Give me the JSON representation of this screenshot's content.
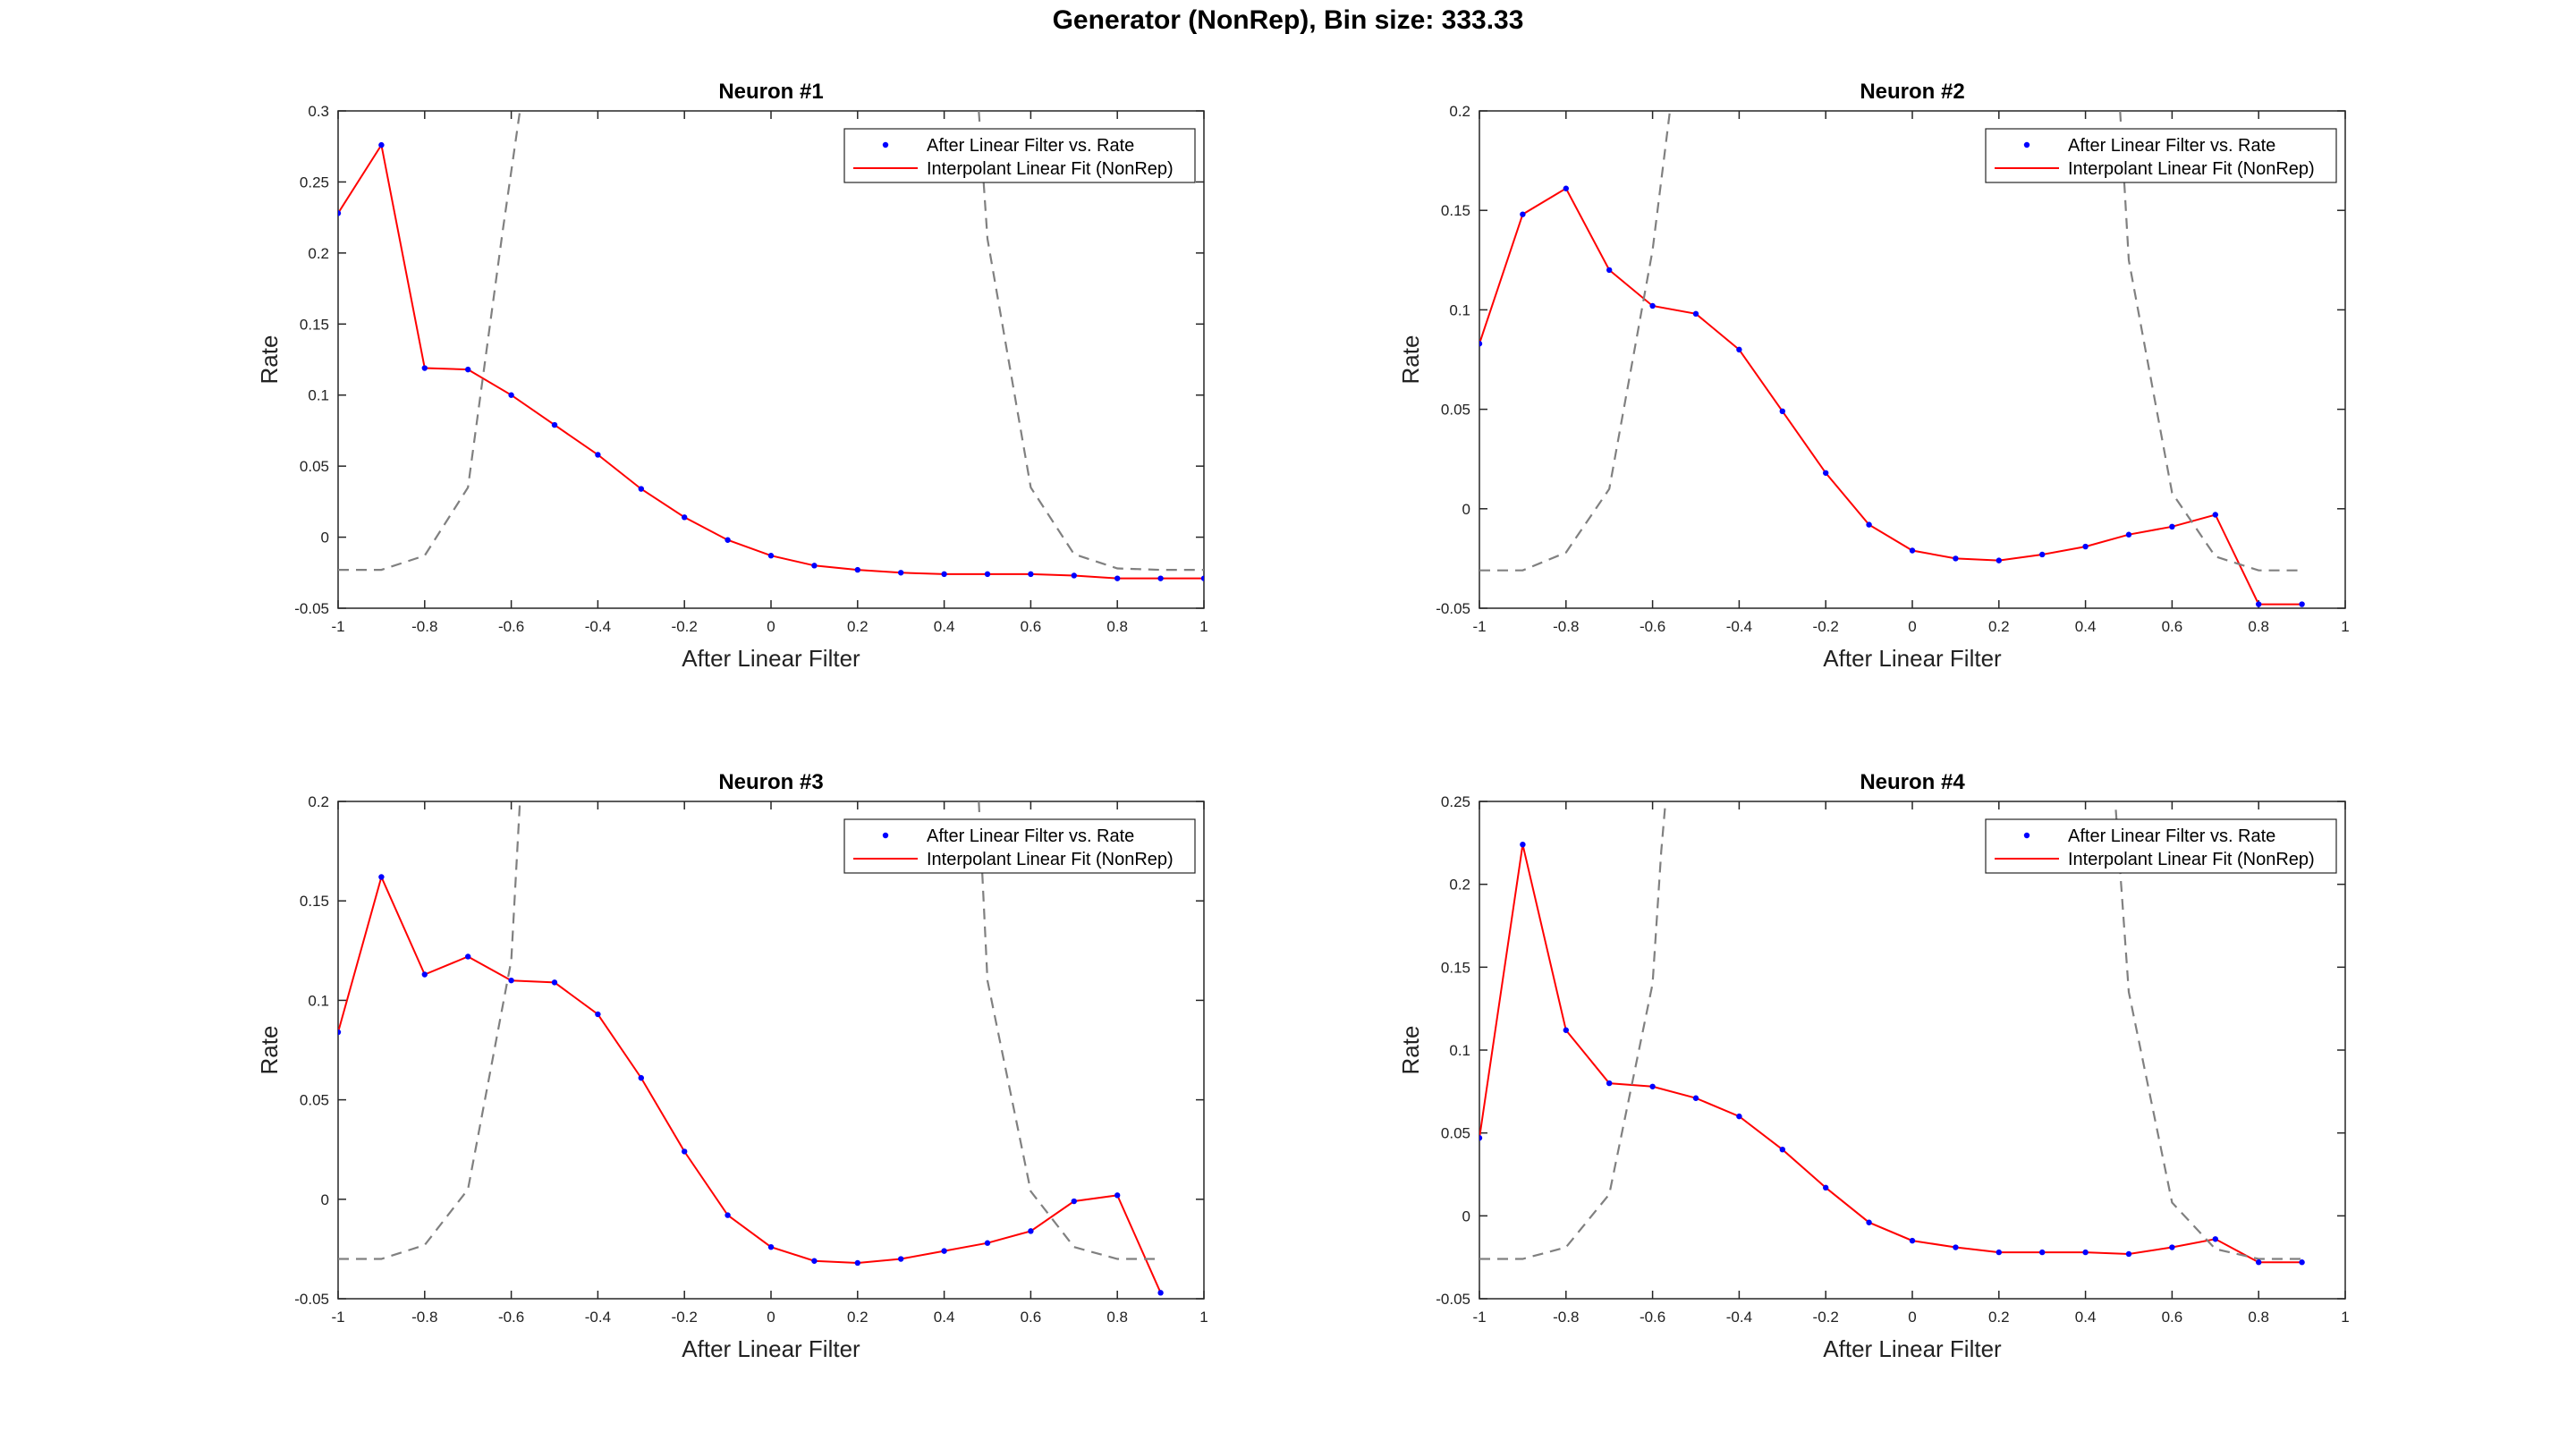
{
  "figure": {
    "title": "Generator (NonRep), Bin size: 333.33"
  },
  "chart_data": [
    {
      "type": "line",
      "title": "Neuron #1",
      "xlabel": "After Linear Filter",
      "ylabel": "Rate",
      "xlim": [
        -1,
        1
      ],
      "ylim": [
        -0.05,
        0.3
      ],
      "xticks": [
        "-1",
        "-0.8",
        "-0.6",
        "-0.4",
        "-0.2",
        "0",
        "0.2",
        "0.4",
        "0.6",
        "0.8",
        "1"
      ],
      "yticks": [
        "-0.05",
        "0",
        "0.05",
        "0.1",
        "0.15",
        "0.2",
        "0.25",
        "0.3"
      ],
      "legend": [
        "After Linear Filter vs. Rate",
        "Interpolant Linear Fit (NonRep)"
      ],
      "legend_position": "top-right",
      "series": [
        {
          "name": "After Linear Filter vs. Rate",
          "style": "points",
          "color": "#0000ff",
          "x": [
            -1,
            -0.9,
            -0.8,
            -0.7,
            -0.6,
            -0.5,
            -0.4,
            -0.3,
            -0.2,
            -0.1,
            0,
            0.1,
            0.2,
            0.3,
            0.4,
            0.5,
            0.6,
            0.7,
            0.8,
            0.9,
            1
          ],
          "y": [
            0.228,
            0.276,
            0.119,
            0.118,
            0.1,
            0.079,
            0.058,
            0.034,
            0.014,
            -0.002,
            -0.013,
            -0.02,
            -0.023,
            -0.025,
            -0.026,
            -0.026,
            -0.026,
            -0.027,
            -0.029,
            -0.029,
            -0.029
          ]
        },
        {
          "name": "Interpolant Linear Fit (NonRep)",
          "style": "line",
          "color": "#ff0000",
          "x": [
            -1,
            -0.9,
            -0.8,
            -0.7,
            -0.6,
            -0.5,
            -0.4,
            -0.3,
            -0.2,
            -0.1,
            0,
            0.1,
            0.2,
            0.3,
            0.4,
            0.5,
            0.6,
            0.7,
            0.8,
            0.9,
            1
          ],
          "y": [
            0.228,
            0.276,
            0.119,
            0.118,
            0.1,
            0.079,
            0.058,
            0.034,
            0.014,
            -0.002,
            -0.013,
            -0.02,
            -0.023,
            -0.025,
            -0.026,
            -0.026,
            -0.026,
            -0.027,
            -0.029,
            -0.029,
            -0.029
          ]
        },
        {
          "style": "dashed",
          "color": "#808080",
          "x": [
            -1,
            -0.9,
            -0.8,
            -0.7,
            -0.62,
            -0.58,
            -0.57
          ],
          "y": [
            -0.023,
            -0.023,
            -0.013,
            0.035,
            0.215,
            0.3,
            0.32
          ]
        },
        {
          "style": "dashed",
          "color": "#808080",
          "x": [
            0.48,
            0.5,
            0.6,
            0.7,
            0.8,
            0.9,
            1
          ],
          "y": [
            0.3,
            0.21,
            0.035,
            -0.012,
            -0.022,
            -0.023,
            -0.023
          ]
        }
      ]
    },
    {
      "type": "line",
      "title": "Neuron #2",
      "xlabel": "After Linear Filter",
      "ylabel": "Rate",
      "xlim": [
        -1,
        1
      ],
      "ylim": [
        -0.05,
        0.2
      ],
      "xticks": [
        "-1",
        "-0.8",
        "-0.6",
        "-0.4",
        "-0.2",
        "0",
        "0.2",
        "0.4",
        "0.6",
        "0.8",
        "1"
      ],
      "yticks": [
        "-0.05",
        "0",
        "0.05",
        "0.1",
        "0.15",
        "0.2"
      ],
      "legend": [
        "After Linear Filter vs. Rate",
        "Interpolant Linear Fit (NonRep)"
      ],
      "legend_position": "top-right",
      "series": [
        {
          "name": "After Linear Filter vs. Rate",
          "style": "points",
          "color": "#0000ff",
          "x": [
            -1,
            -0.9,
            -0.8,
            -0.7,
            -0.6,
            -0.5,
            -0.4,
            -0.3,
            -0.2,
            -0.1,
            0,
            0.1,
            0.2,
            0.3,
            0.4,
            0.5,
            0.6,
            0.7,
            0.8,
            0.9
          ],
          "y": [
            0.083,
            0.148,
            0.161,
            0.12,
            0.102,
            0.098,
            0.08,
            0.049,
            0.018,
            -0.008,
            -0.021,
            -0.025,
            -0.026,
            -0.023,
            -0.019,
            -0.013,
            -0.009,
            -0.003,
            -0.048,
            -0.048
          ]
        },
        {
          "name": "Interpolant Linear Fit (NonRep)",
          "style": "line",
          "color": "#ff0000",
          "x": [
            -1,
            -0.9,
            -0.8,
            -0.7,
            -0.6,
            -0.5,
            -0.4,
            -0.3,
            -0.2,
            -0.1,
            0,
            0.1,
            0.2,
            0.3,
            0.4,
            0.5,
            0.6,
            0.7,
            0.8,
            0.9
          ],
          "y": [
            0.083,
            0.148,
            0.161,
            0.12,
            0.102,
            0.098,
            0.08,
            0.049,
            0.018,
            -0.008,
            -0.021,
            -0.025,
            -0.026,
            -0.023,
            -0.019,
            -0.013,
            -0.009,
            -0.003,
            -0.048,
            -0.048
          ]
        },
        {
          "style": "dashed",
          "color": "#808080",
          "x": [
            -1,
            -0.9,
            -0.8,
            -0.7,
            -0.6,
            -0.56,
            -0.55
          ],
          "y": [
            -0.031,
            -0.031,
            -0.022,
            0.01,
            0.13,
            0.2,
            0.22
          ]
        },
        {
          "style": "dashed",
          "color": "#808080",
          "x": [
            0.48,
            0.5,
            0.6,
            0.7,
            0.8,
            0.9
          ],
          "y": [
            0.2,
            0.125,
            0.008,
            -0.024,
            -0.031,
            -0.031
          ]
        }
      ]
    },
    {
      "type": "line",
      "title": "Neuron #3",
      "xlabel": "After Linear Filter",
      "ylabel": "Rate",
      "xlim": [
        -1,
        1
      ],
      "ylim": [
        -0.05,
        0.2
      ],
      "xticks": [
        "-1",
        "-0.8",
        "-0.6",
        "-0.4",
        "-0.2",
        "0",
        "0.2",
        "0.4",
        "0.6",
        "0.8",
        "1"
      ],
      "yticks": [
        "-0.05",
        "0",
        "0.05",
        "0.1",
        "0.15",
        "0.2"
      ],
      "legend": [
        "After Linear Filter vs. Rate",
        "Interpolant Linear Fit (NonRep)"
      ],
      "legend_position": "top-right",
      "series": [
        {
          "name": "After Linear Filter vs. Rate",
          "style": "points",
          "color": "#0000ff",
          "x": [
            -1,
            -0.9,
            -0.8,
            -0.7,
            -0.6,
            -0.5,
            -0.4,
            -0.3,
            -0.2,
            -0.1,
            0,
            0.1,
            0.2,
            0.3,
            0.4,
            0.5,
            0.6,
            0.7,
            0.8,
            0.9
          ],
          "y": [
            0.084,
            0.162,
            0.113,
            0.122,
            0.11,
            0.109,
            0.093,
            0.061,
            0.024,
            -0.008,
            -0.024,
            -0.031,
            -0.032,
            -0.03,
            -0.026,
            -0.022,
            -0.016,
            -0.001,
            0.002,
            -0.047
          ]
        },
        {
          "name": "Interpolant Linear Fit (NonRep)",
          "style": "line",
          "color": "#ff0000",
          "x": [
            -1,
            -0.9,
            -0.8,
            -0.7,
            -0.6,
            -0.5,
            -0.4,
            -0.3,
            -0.2,
            -0.1,
            0,
            0.1,
            0.2,
            0.3,
            0.4,
            0.5,
            0.6,
            0.7,
            0.8,
            0.9
          ],
          "y": [
            0.084,
            0.162,
            0.113,
            0.122,
            0.11,
            0.109,
            0.093,
            0.061,
            0.024,
            -0.008,
            -0.024,
            -0.031,
            -0.032,
            -0.03,
            -0.026,
            -0.022,
            -0.016,
            -0.001,
            0.002,
            -0.047
          ]
        },
        {
          "style": "dashed",
          "color": "#808080",
          "x": [
            -1,
            -0.9,
            -0.8,
            -0.7,
            -0.6,
            -0.58,
            -0.57
          ],
          "y": [
            -0.03,
            -0.03,
            -0.023,
            0.005,
            0.12,
            0.2,
            0.22
          ]
        },
        {
          "style": "dashed",
          "color": "#808080",
          "x": [
            0.48,
            0.5,
            0.6,
            0.7,
            0.8,
            0.9
          ],
          "y": [
            0.2,
            0.11,
            0.004,
            -0.024,
            -0.03,
            -0.03
          ]
        }
      ]
    },
    {
      "type": "line",
      "title": "Neuron #4",
      "xlabel": "After Linear Filter",
      "ylabel": "Rate",
      "xlim": [
        -1,
        1
      ],
      "ylim": [
        -0.05,
        0.25
      ],
      "xticks": [
        "-1",
        "-0.8",
        "-0.6",
        "-0.4",
        "-0.2",
        "0",
        "0.2",
        "0.4",
        "0.6",
        "0.8",
        "1"
      ],
      "yticks": [
        "-0.05",
        "0",
        "0.05",
        "0.1",
        "0.15",
        "0.2",
        "0.25"
      ],
      "legend": [
        "After Linear Filter vs. Rate",
        "Interpolant Linear Fit (NonRep)"
      ],
      "legend_position": "top-right",
      "series": [
        {
          "name": "After Linear Filter vs. Rate",
          "style": "points",
          "color": "#0000ff",
          "x": [
            -1,
            -0.9,
            -0.8,
            -0.7,
            -0.6,
            -0.5,
            -0.4,
            -0.3,
            -0.2,
            -0.1,
            0,
            0.1,
            0.2,
            0.3,
            0.4,
            0.5,
            0.6,
            0.7,
            0.8,
            0.9
          ],
          "y": [
            0.047,
            0.224,
            0.112,
            0.08,
            0.078,
            0.071,
            0.06,
            0.04,
            0.017,
            -0.004,
            -0.015,
            -0.019,
            -0.022,
            -0.022,
            -0.022,
            -0.023,
            -0.019,
            -0.014,
            -0.028,
            -0.028
          ]
        },
        {
          "name": "Interpolant Linear Fit (NonRep)",
          "style": "line",
          "color": "#ff0000",
          "x": [
            -1,
            -0.9,
            -0.8,
            -0.7,
            -0.6,
            -0.5,
            -0.4,
            -0.3,
            -0.2,
            -0.1,
            0,
            0.1,
            0.2,
            0.3,
            0.4,
            0.5,
            0.6,
            0.7,
            0.8,
            0.9
          ],
          "y": [
            0.047,
            0.224,
            0.112,
            0.08,
            0.078,
            0.071,
            0.06,
            0.04,
            0.017,
            -0.004,
            -0.015,
            -0.019,
            -0.022,
            -0.022,
            -0.022,
            -0.023,
            -0.019,
            -0.014,
            -0.028,
            -0.028
          ]
        },
        {
          "style": "dashed",
          "color": "#808080",
          "x": [
            -1,
            -0.9,
            -0.8,
            -0.7,
            -0.6,
            -0.58,
            -0.57
          ],
          "y": [
            -0.026,
            -0.026,
            -0.019,
            0.013,
            0.14,
            0.22,
            0.25
          ]
        },
        {
          "style": "dashed",
          "color": "#808080",
          "x": [
            0.47,
            0.5,
            0.6,
            0.7,
            0.8,
            0.9
          ],
          "y": [
            0.245,
            0.135,
            0.008,
            -0.02,
            -0.026,
            -0.026
          ]
        }
      ]
    }
  ]
}
